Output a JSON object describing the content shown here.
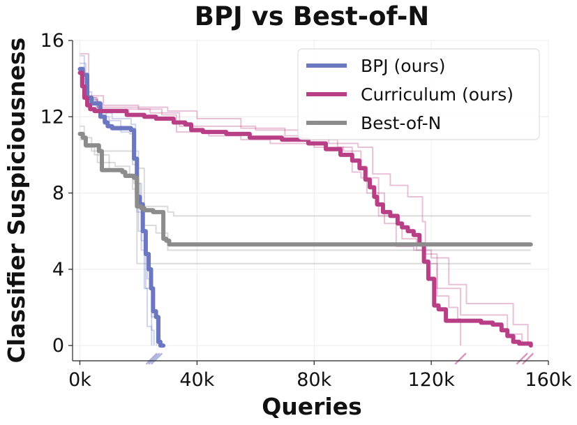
{
  "chart_data": {
    "type": "line",
    "title": "BPJ vs Best-of-N",
    "xlabel": "Queries",
    "ylabel": "Classifier Suspiciousness",
    "xlim": [
      -2500,
      160000
    ],
    "ylim": [
      -0.8,
      16
    ],
    "x_ticks": [
      0,
      40000,
      80000,
      120000,
      160000
    ],
    "x_tick_labels": [
      "0k",
      "40k",
      "80k",
      "120k",
      "160k"
    ],
    "y_ticks": [
      0,
      4,
      8,
      12,
      16
    ],
    "y_tick_labels": [
      "0",
      "4",
      "8",
      "12",
      "16"
    ],
    "grid": true,
    "legend_position": "top-right",
    "series": [
      {
        "name": "BPJ (ours)",
        "color": "#6b77c0",
        "x": [
          0,
          1000,
          2500,
          4000,
          6500,
          7000,
          8500,
          9500,
          11000,
          15000,
          17500,
          18500,
          19500,
          20500,
          21500,
          22500,
          23500,
          24300,
          25000,
          26000,
          26800,
          27500,
          28500
        ],
        "y": [
          14.5,
          14.2,
          13.0,
          12.7,
          12.7,
          12.0,
          11.7,
          11.5,
          11.4,
          11.4,
          11.3,
          9.8,
          7.8,
          7.4,
          6.0,
          4.8,
          4.0,
          3.0,
          1.8,
          1.5,
          0.2,
          0.0,
          0.0
        ],
        "end_markers": [
          24500,
          25300,
          26200
        ]
      },
      {
        "name": "Curriculum (ours)",
        "color": "#b83f86",
        "x": [
          0,
          800,
          1500,
          2500,
          3500,
          5000,
          7000,
          16000,
          22000,
          26000,
          32000,
          36000,
          38000,
          42000,
          50000,
          58000,
          62000,
          69000,
          78000,
          84000,
          89000,
          93000,
          95500,
          97500,
          99000,
          100500,
          101500,
          103500,
          106000,
          108500,
          110000,
          112000,
          114000,
          116000,
          117500,
          119000,
          121000,
          122500,
          125000,
          129000,
          137000,
          141000,
          144000,
          146000,
          148000,
          150000,
          152000,
          154000
        ],
        "y": [
          14.3,
          13.6,
          13.0,
          12.6,
          12.4,
          12.3,
          12.3,
          12.1,
          12.0,
          11.9,
          11.7,
          11.6,
          11.3,
          11.2,
          11.1,
          10.9,
          10.9,
          10.8,
          10.6,
          10.3,
          10.0,
          9.7,
          9.3,
          8.7,
          8.3,
          7.8,
          7.4,
          7.0,
          6.8,
          6.4,
          6.2,
          6.0,
          5.8,
          5.3,
          4.4,
          3.5,
          2.1,
          1.9,
          1.3,
          1.3,
          1.2,
          1.1,
          0.8,
          0.5,
          0.2,
          0.1,
          0.1,
          0.0
        ],
        "end_markers": [
          130000,
          151000,
          153000
        ]
      },
      {
        "name": "Best-of-N",
        "color": "#8c8c8c",
        "x": [
          0,
          1000,
          2000,
          5500,
          6500,
          7500,
          13500,
          14500,
          15500,
          17000,
          18500,
          19500,
          21000,
          22000,
          23000,
          25000,
          28500,
          29500,
          30500,
          31500,
          35000,
          154000
        ],
        "y": [
          11.1,
          10.9,
          10.5,
          10.5,
          10.2,
          9.2,
          9.2,
          9.1,
          8.9,
          8.9,
          8.8,
          7.3,
          7.2,
          7.1,
          7.1,
          7.0,
          5.6,
          5.5,
          5.3,
          5.3,
          5.3,
          5.3
        ]
      }
    ],
    "faint_runs": [
      {
        "color": "#6b77c0",
        "x": [
          0,
          1500,
          3000,
          5500,
          7000,
          11000,
          16000,
          17500,
          19000,
          20000,
          22000,
          23000,
          24500
        ],
        "y": [
          15.2,
          13.8,
          13.0,
          12.5,
          12.2,
          11.9,
          11.9,
          11.6,
          9.0,
          6.0,
          3.0,
          1.0,
          0.0
        ]
      },
      {
        "color": "#6b77c0",
        "x": [
          0,
          1500,
          3000,
          6000,
          9000,
          14000,
          17000,
          18000,
          19500,
          21000,
          22500,
          24500,
          25300
        ],
        "y": [
          14.6,
          13.4,
          12.9,
          12.3,
          11.5,
          11.2,
          11.1,
          9.5,
          7.0,
          5.0,
          3.0,
          0.8,
          0.0
        ]
      },
      {
        "color": "#6b77c0",
        "x": [
          0,
          2000,
          4000,
          7000,
          10000,
          14000,
          17500,
          19000,
          21000,
          23000,
          24500,
          26200
        ],
        "y": [
          14.8,
          13.3,
          12.8,
          12.0,
          11.8,
          11.5,
          11.3,
          8.5,
          5.5,
          3.5,
          1.5,
          0.0
        ]
      },
      {
        "color": "#b83f86",
        "x": [
          0,
          3000,
          6000,
          20000,
          30000,
          40000,
          55000,
          70000,
          85000,
          95000,
          100000,
          106000,
          112000,
          117000,
          118000,
          122000,
          126000,
          129000,
          130000
        ],
        "y": [
          14.0,
          12.9,
          12.5,
          12.5,
          12.3,
          11.9,
          11.4,
          11.0,
          10.6,
          10.4,
          9.0,
          8.4,
          7.8,
          6.5,
          4.8,
          2.6,
          2.0,
          1.4,
          0.0
        ]
      },
      {
        "color": "#b83f86",
        "x": [
          0,
          3000,
          8000,
          20000,
          28000,
          33000,
          44000,
          55000,
          65000,
          80000,
          90000,
          96000,
          98000,
          104000,
          110000,
          115000,
          118000,
          122000,
          130000,
          142000,
          146000,
          151000
        ],
        "y": [
          15.3,
          13.1,
          12.6,
          12.4,
          12.1,
          11.2,
          11.0,
          10.8,
          10.6,
          10.4,
          10.2,
          9.4,
          8.0,
          6.4,
          5.6,
          5.0,
          4.3,
          3.0,
          1.6,
          1.6,
          0.6,
          0.0
        ]
      },
      {
        "color": "#b83f86",
        "x": [
          0,
          2500,
          6000,
          24000,
          34000,
          60000,
          76000,
          88000,
          93000,
          96000,
          102000,
          108000,
          114000,
          120000,
          126000,
          132000,
          142000,
          148000,
          153000
        ],
        "y": [
          14.2,
          13.0,
          12.4,
          12.2,
          11.5,
          11.3,
          10.8,
          10.4,
          9.1,
          8.8,
          6.8,
          5.2,
          5.0,
          4.6,
          3.2,
          2.2,
          2.2,
          1.1,
          0.0
        ]
      },
      {
        "color": "#8c8c8c",
        "x": [
          0,
          1500,
          4000,
          16000,
          20000,
          22000,
          30000,
          32000,
          154000
        ],
        "y": [
          11.5,
          10.9,
          10.2,
          10.2,
          9.3,
          7.3,
          7.0,
          6.8,
          6.8
        ]
      },
      {
        "color": "#8c8c8c",
        "x": [
          0,
          2000,
          6000,
          12000,
          17000,
          18500,
          20500,
          22000,
          26000,
          30000,
          154000
        ],
        "y": [
          10.8,
          10.5,
          9.6,
          9.4,
          8.9,
          8.5,
          7.5,
          6.3,
          5.9,
          5.0,
          5.0
        ]
      },
      {
        "color": "#8c8c8c",
        "x": [
          0,
          2000,
          5000,
          10000,
          15000,
          18000,
          19500,
          26000,
          154000
        ],
        "y": [
          10.9,
          10.4,
          10.0,
          9.2,
          9.0,
          8.2,
          4.3,
          4.3,
          4.3
        ]
      }
    ]
  }
}
